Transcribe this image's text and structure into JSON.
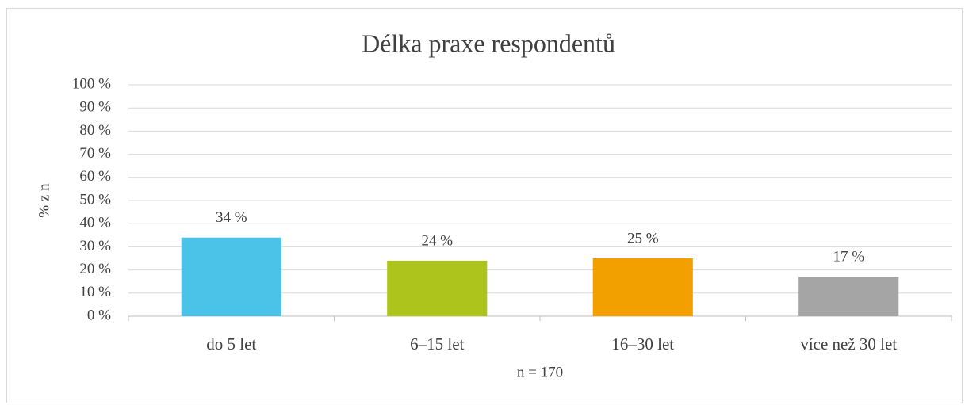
{
  "chart_data": {
    "type": "bar",
    "title": "Délka praxe respondentů",
    "y_label": "% z n",
    "x_label": "n = 170",
    "categories": [
      "do 5 let",
      "6–15 let",
      "16–30 let",
      "více než 30 let"
    ],
    "values": [
      34,
      24,
      25,
      17
    ],
    "value_labels": [
      "34 %",
      "24 %",
      "25 %",
      "17 %"
    ],
    "colors": [
      "#4bc3e8",
      "#acc41b",
      "#f29f00",
      "#a5a5a5"
    ],
    "ylim": [
      0,
      100
    ],
    "yticks": [
      {
        "value": 0,
        "label": "0 %"
      },
      {
        "value": 10,
        "label": "10 %"
      },
      {
        "value": 20,
        "label": "20 %"
      },
      {
        "value": 30,
        "label": "30 %"
      },
      {
        "value": 40,
        "label": "40 %"
      },
      {
        "value": 50,
        "label": "50 %"
      },
      {
        "value": 60,
        "label": "60 %"
      },
      {
        "value": 70,
        "label": "70 %"
      },
      {
        "value": 80,
        "label": "80 %"
      },
      {
        "value": 90,
        "label": "90 %"
      },
      {
        "value": 100,
        "label": "100 %"
      }
    ],
    "grid": true
  }
}
